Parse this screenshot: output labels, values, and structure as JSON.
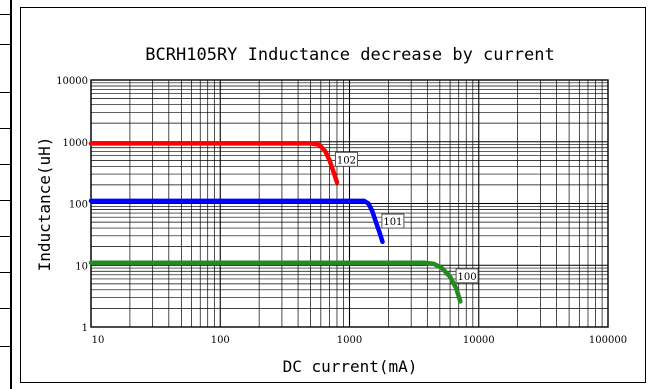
{
  "chart_data": {
    "type": "line",
    "title": "BCRH105RY Inductance decrease by current",
    "xlabel": "DC current(mA)",
    "ylabel": "Inductance(uH)",
    "x_scale": "log",
    "y_scale": "log",
    "xlim": [
      10,
      100000
    ],
    "ylim": [
      1,
      10000
    ],
    "x_ticks": [
      "10",
      "100",
      "1000",
      "10000",
      "100000"
    ],
    "y_ticks": [
      "1",
      "10",
      "100",
      "1000",
      "10000"
    ],
    "grid": true,
    "series": [
      {
        "name": "102",
        "color": "#ff0000",
        "points": [
          [
            10,
            940
          ],
          [
            300,
            940
          ],
          [
            500,
            940
          ],
          [
            580,
            900
          ],
          [
            650,
            700
          ],
          [
            700,
            500
          ],
          [
            750,
            330
          ],
          [
            800,
            220
          ]
        ]
      },
      {
        "name": "101",
        "color": "#0000ff",
        "points": [
          [
            10,
            110
          ],
          [
            500,
            110
          ],
          [
            1300,
            110
          ],
          [
            1400,
            100
          ],
          [
            1500,
            75
          ],
          [
            1600,
            50
          ],
          [
            1700,
            35
          ],
          [
            1800,
            24
          ]
        ]
      },
      {
        "name": "100",
        "color": "#228b22",
        "points": [
          [
            10,
            11
          ],
          [
            1000,
            11
          ],
          [
            3800,
            11
          ],
          [
            4500,
            10.5
          ],
          [
            5200,
            9
          ],
          [
            6000,
            6.5
          ],
          [
            6700,
            4.2
          ],
          [
            7200,
            2.6
          ]
        ]
      }
    ]
  }
}
